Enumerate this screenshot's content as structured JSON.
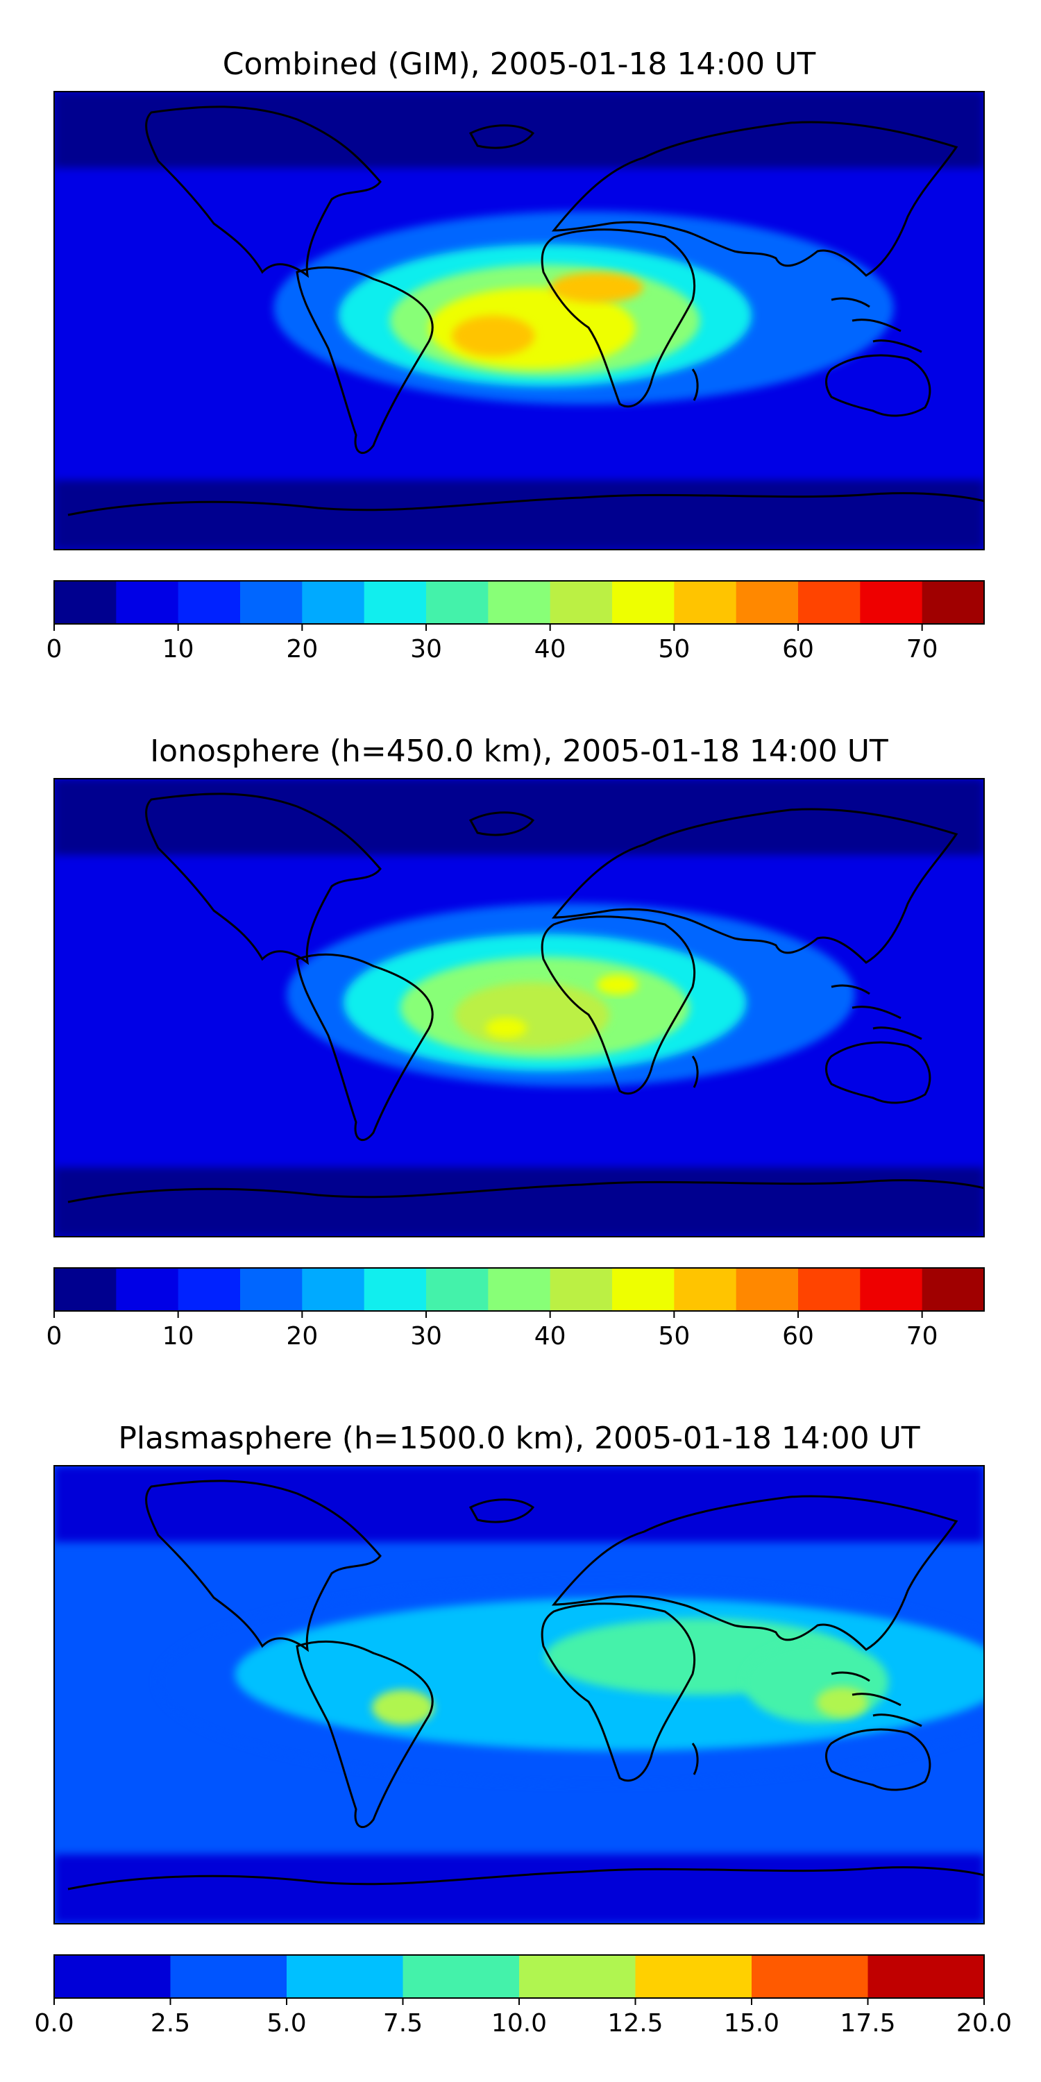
{
  "panels": [
    {
      "title": "Combined (GIM), 2005-01-18 14:00 UT",
      "colorbar": {
        "ticks": [
          "0",
          "10",
          "20",
          "30",
          "40",
          "50",
          "60",
          "70"
        ],
        "tick_values": [
          0,
          10,
          20,
          30,
          40,
          50,
          60,
          70
        ],
        "min": 0,
        "max": 75,
        "step": 5,
        "colors": [
          "#00008f",
          "#0000e6",
          "#0022ff",
          "#0066ff",
          "#00aaff",
          "#11eeee",
          "#44f2aa",
          "#88ff77",
          "#bbf044",
          "#eeff00",
          "#ffc400",
          "#ff8800",
          "#ff4400",
          "#ee0000",
          "#a00000"
        ]
      },
      "blobs": [
        {
          "lon": 25,
          "lat": 5,
          "rx": 120,
          "ry": 38,
          "level": 3
        },
        {
          "lon": 10,
          "lat": 2,
          "rx": 80,
          "ry": 28,
          "level": 5
        },
        {
          "lon": 10,
          "lat": 0,
          "rx": 60,
          "ry": 22,
          "level": 7
        },
        {
          "lon": 5,
          "lat": -3,
          "rx": 40,
          "ry": 16,
          "level": 9
        },
        {
          "lon": -10,
          "lat": -6,
          "rx": 16,
          "ry": 8,
          "level": 10
        },
        {
          "lon": 30,
          "lat": 13,
          "rx": 18,
          "ry": 6,
          "level": 10
        }
      ]
    },
    {
      "title": "Ionosphere  (h=450.0 km), 2005-01-18 14:00 UT",
      "colorbar": {
        "ticks": [
          "0",
          "10",
          "20",
          "30",
          "40",
          "50",
          "60",
          "70"
        ],
        "tick_values": [
          0,
          10,
          20,
          30,
          40,
          50,
          60,
          70
        ],
        "min": 0,
        "max": 75,
        "step": 5,
        "colors": [
          "#00008f",
          "#0000e6",
          "#0022ff",
          "#0066ff",
          "#00aaff",
          "#11eeee",
          "#44f2aa",
          "#88ff77",
          "#bbf044",
          "#eeff00",
          "#ffc400",
          "#ff8800",
          "#ff4400",
          "#ee0000",
          "#a00000"
        ]
      },
      "blobs": [
        {
          "lon": 20,
          "lat": 5,
          "rx": 110,
          "ry": 36,
          "level": 3
        },
        {
          "lon": 10,
          "lat": 2,
          "rx": 78,
          "ry": 27,
          "level": 5
        },
        {
          "lon": 10,
          "lat": 0,
          "rx": 56,
          "ry": 20,
          "level": 7
        },
        {
          "lon": 5,
          "lat": -3,
          "rx": 30,
          "ry": 13,
          "level": 8
        },
        {
          "lon": -5,
          "lat": -8,
          "rx": 8,
          "ry": 4,
          "level": 9
        },
        {
          "lon": 38,
          "lat": 9,
          "rx": 8,
          "ry": 4,
          "level": 9
        }
      ]
    },
    {
      "title": "Plasmasphere (h=1500.0 km), 2005-01-18 14:00 UT",
      "colorbar": {
        "ticks": [
          "0.0",
          "2.5",
          "5.0",
          "7.5",
          "10.0",
          "12.5",
          "15.0",
          "17.5",
          "20.0"
        ],
        "tick_values": [
          0,
          2.5,
          5,
          7.5,
          10,
          12.5,
          15,
          17.5,
          20
        ],
        "min": 0,
        "max": 20,
        "step": 2.5,
        "colors": [
          "#0000d8",
          "#0055ff",
          "#00c0ff",
          "#44f2aa",
          "#b0f550",
          "#ffd000",
          "#ff5a00",
          "#c00000"
        ]
      },
      "blobs": [
        {
          "lon": 30,
          "lat": 5,
          "rx": 170,
          "ry": 40,
          "level": 1
        },
        {
          "lon": 40,
          "lat": 8,
          "rx": 150,
          "ry": 30,
          "level": 2
        },
        {
          "lon": 70,
          "lat": 15,
          "rx": 60,
          "ry": 15,
          "level": 3
        },
        {
          "lon": 115,
          "lat": 5,
          "rx": 28,
          "ry": 16,
          "level": 3
        },
        {
          "lon": -45,
          "lat": -5,
          "rx": 12,
          "ry": 7,
          "level": 4
        },
        {
          "lon": 125,
          "lat": -3,
          "rx": 10,
          "ry": 6,
          "level": 4
        }
      ]
    }
  ]
}
